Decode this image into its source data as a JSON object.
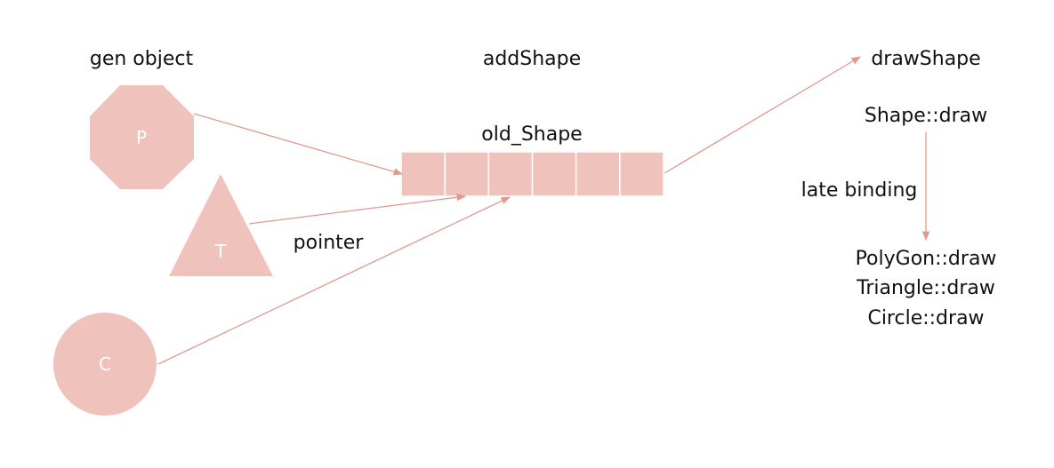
{
  "labels": {
    "gen_object": "gen object",
    "add_shape": "addShape",
    "draw_shape": "drawShape",
    "old_shape": "old_Shape",
    "pointer": "pointer",
    "shape_draw": "Shape::draw",
    "late_binding": "late binding",
    "polygon_draw": "PolyGon::draw",
    "triangle_draw": "Triangle::draw",
    "circle_draw": "Circle::draw"
  },
  "shapes": {
    "polygon": "P",
    "triangle": "T",
    "circle": "C"
  },
  "array_cells": 6,
  "colors": {
    "shape_fill": "#efc3bb",
    "arrow": "#e09a8c",
    "text": "#111111"
  }
}
